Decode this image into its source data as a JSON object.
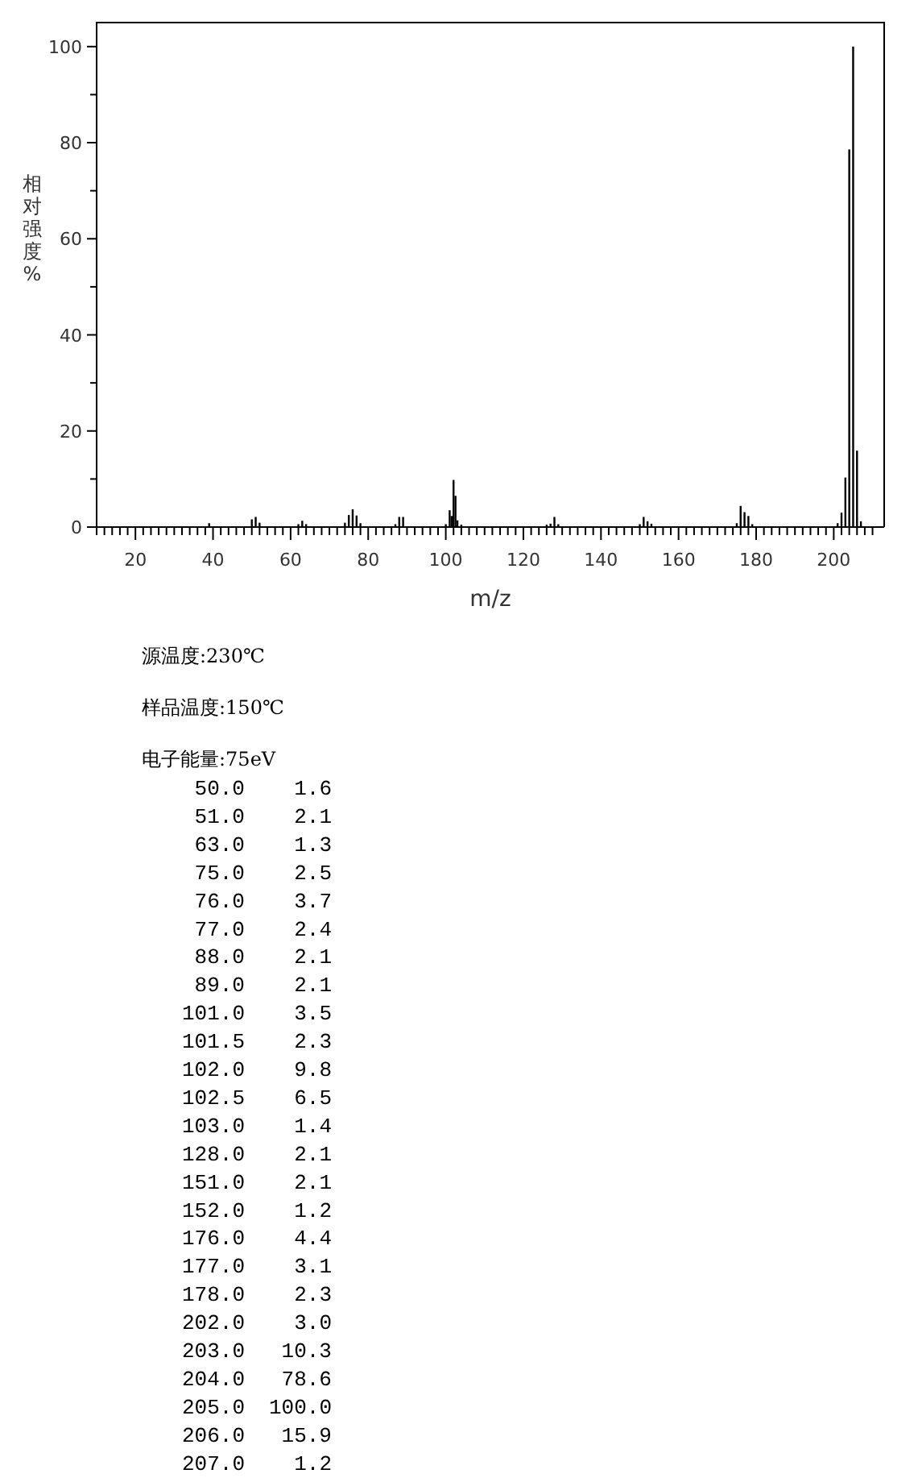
{
  "chart_data": [
    {
      "type": "bar",
      "xlabel": "m/z",
      "ylabel": "相对强度%",
      "x": [
        39,
        50,
        51,
        52,
        62,
        63,
        64,
        74,
        75,
        76,
        77,
        78,
        87,
        88,
        89,
        100,
        101,
        101.5,
        102,
        102.5,
        103,
        104,
        126,
        127,
        128,
        129,
        150,
        151,
        152,
        153,
        175,
        176,
        177,
        178,
        179,
        201,
        202,
        203,
        204,
        205,
        206,
        207
      ],
      "values": [
        0.8,
        1.6,
        2.1,
        0.9,
        0.6,
        1.3,
        0.6,
        0.9,
        2.5,
        3.7,
        2.4,
        0.8,
        0.6,
        2.1,
        2.1,
        0.6,
        3.5,
        2.3,
        9.8,
        6.5,
        1.4,
        0.5,
        0.5,
        0.7,
        2.1,
        0.6,
        0.6,
        2.1,
        1.2,
        0.7,
        0.8,
        4.4,
        3.1,
        2.3,
        0.6,
        0.8,
        3.0,
        10.3,
        78.6,
        100.0,
        15.9,
        1.2
      ],
      "color": "#000000",
      "xlim": [
        10,
        213
      ],
      "ylim": [
        0,
        105
      ],
      "xticks": [
        {
          "value": 12,
          "label": null
        },
        {
          "value": 14,
          "label": null
        },
        {
          "value": 16,
          "label": null
        },
        {
          "value": 18,
          "label": null
        },
        20,
        {
          "value": 22,
          "label": null
        },
        {
          "value": 24,
          "label": null
        },
        {
          "value": 26,
          "label": null
        },
        {
          "value": 28,
          "label": null
        },
        {
          "value": 30,
          "label": null
        },
        {
          "value": 32,
          "label": null
        },
        {
          "value": 34,
          "label": null
        },
        {
          "value": 36,
          "label": null
        },
        {
          "value": 38,
          "label": null
        },
        40,
        {
          "value": 42,
          "label": null
        },
        {
          "value": 44,
          "label": null
        },
        {
          "value": 46,
          "label": null
        },
        {
          "value": 48,
          "label": null
        },
        {
          "value": 50,
          "label": null
        },
        {
          "value": 52,
          "label": null
        },
        {
          "value": 54,
          "label": null
        },
        {
          "value": 56,
          "label": null
        },
        {
          "value": 58,
          "label": null
        },
        60,
        {
          "value": 62,
          "label": null
        },
        {
          "value": 64,
          "label": null
        },
        {
          "value": 66,
          "label": null
        },
        {
          "value": 68,
          "label": null
        },
        {
          "value": 70,
          "label": null
        },
        {
          "value": 72,
          "label": null
        },
        {
          "value": 74,
          "label": null
        },
        {
          "value": 76,
          "label": null
        },
        {
          "value": 78,
          "label": null
        },
        80,
        {
          "value": 82,
          "label": null
        },
        {
          "value": 84,
          "label": null
        },
        {
          "value": 86,
          "label": null
        },
        {
          "value": 88,
          "label": null
        },
        {
          "value": 90,
          "label": null
        },
        {
          "value": 92,
          "label": null
        },
        {
          "value": 94,
          "label": null
        },
        {
          "value": 96,
          "label": null
        },
        {
          "value": 98,
          "label": null
        },
        100,
        {
          "value": 102,
          "label": null
        },
        {
          "value": 104,
          "label": null
        },
        {
          "value": 106,
          "label": null
        },
        {
          "value": 108,
          "label": null
        },
        {
          "value": 110,
          "label": null
        },
        {
          "value": 112,
          "label": null
        },
        {
          "value": 114,
          "label": null
        },
        {
          "value": 116,
          "label": null
        },
        {
          "value": 118,
          "label": null
        },
        120,
        {
          "value": 122,
          "label": null
        },
        {
          "value": 124,
          "label": null
        },
        {
          "value": 126,
          "label": null
        },
        {
          "value": 128,
          "label": null
        },
        {
          "value": 130,
          "label": null
        },
        {
          "value": 132,
          "label": null
        },
        {
          "value": 134,
          "label": null
        },
        {
          "value": 136,
          "label": null
        },
        {
          "value": 138,
          "label": null
        },
        140,
        {
          "value": 142,
          "label": null
        },
        {
          "value": 144,
          "label": null
        },
        {
          "value": 146,
          "label": null
        },
        {
          "value": 148,
          "label": null
        },
        {
          "value": 150,
          "label": null
        },
        {
          "value": 152,
          "label": null
        },
        {
          "value": 154,
          "label": null
        },
        {
          "value": 156,
          "label": null
        },
        {
          "value": 158,
          "label": null
        },
        160,
        {
          "value": 162,
          "label": null
        },
        {
          "value": 164,
          "label": null
        },
        {
          "value": 166,
          "label": null
        },
        {
          "value": 168,
          "label": null
        },
        {
          "value": 170,
          "label": null
        },
        {
          "value": 172,
          "label": null
        },
        {
          "value": 174,
          "label": null
        },
        {
          "value": 176,
          "label": null
        },
        {
          "value": 178,
          "label": null
        },
        180,
        {
          "value": 182,
          "label": null
        },
        {
          "value": 184,
          "label": null
        },
        {
          "value": 186,
          "label": null
        },
        {
          "value": 188,
          "label": null
        },
        {
          "value": 190,
          "label": null
        },
        {
          "value": 192,
          "label": null
        },
        {
          "value": 194,
          "label": null
        },
        {
          "value": 196,
          "label": null
        },
        {
          "value": 198,
          "label": null
        },
        200,
        {
          "value": 202,
          "label": null
        },
        {
          "value": 204,
          "label": null
        },
        {
          "value": 206,
          "label": null
        },
        {
          "value": 208,
          "label": null
        },
        {
          "value": 210,
          "label": null
        }
      ],
      "yticks": [
        0,
        {
          "value": 10,
          "label": null
        },
        20,
        {
          "value": 30,
          "label": null
        },
        40,
        {
          "value": 50,
          "label": null
        },
        60,
        {
          "value": 70,
          "label": null
        },
        80,
        {
          "value": 90,
          "label": null
        },
        100
      ],
      "annotations": [
        "源温度:230℃",
        "样品温度:150℃",
        "电子能量:75eV"
      ]
    },
    {
      "type": "other",
      "categories": [
        "50.0",
        "51.0",
        "63.0",
        "75.0",
        "76.0",
        "77.0",
        "88.0",
        "89.0",
        "101.0",
        "101.5",
        "102.0",
        "102.5",
        "103.0",
        "128.0",
        "151.0",
        "152.0",
        "176.0",
        "177.0",
        "178.0",
        "202.0",
        "203.0",
        "204.0",
        "205.0",
        "206.0",
        "207.0"
      ],
      "values": [
        1.6,
        2.1,
        1.3,
        2.5,
        3.7,
        2.4,
        2.1,
        2.1,
        3.5,
        2.3,
        9.8,
        6.5,
        1.4,
        2.1,
        2.1,
        1.2,
        4.4,
        3.1,
        2.3,
        3.0,
        10.3,
        78.6,
        100.0,
        15.9,
        1.2
      ],
      "value_labels": [
        "1.6",
        "2.1",
        "1.3",
        "2.5",
        "3.7",
        "2.4",
        "2.1",
        "2.1",
        "3.5",
        "2.3",
        "9.8",
        "6.5",
        "1.4",
        "2.1",
        "2.1",
        "1.2",
        "4.4",
        "3.1",
        "2.3",
        "3.0",
        "10.3",
        "78.6",
        "100.0",
        "15.9",
        "1.2"
      ]
    }
  ]
}
